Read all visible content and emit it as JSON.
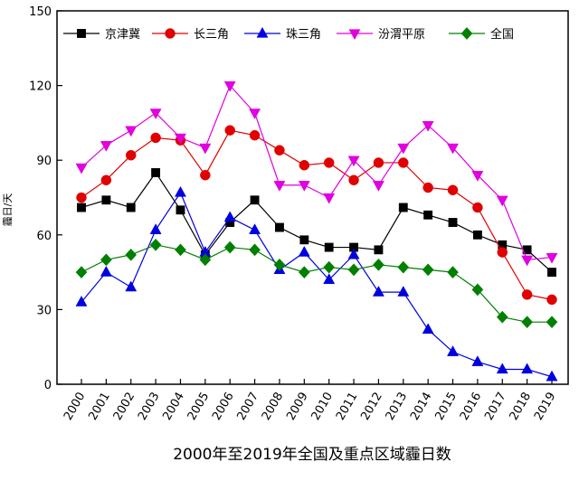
{
  "chart_data": {
    "type": "line",
    "title": "",
    "caption": "2000年至2019年全国及重点区域霾日数",
    "xlabel": "",
    "ylabel": "霾日/天",
    "ylim": [
      0,
      150
    ],
    "yticks": [
      0,
      30,
      60,
      90,
      120,
      150
    ],
    "grid": false,
    "legend": "top",
    "x": [
      "2000",
      "2001",
      "2002",
      "2003",
      "2004",
      "2005",
      "2006",
      "2007",
      "2008",
      "2009",
      "2010",
      "2011",
      "2012",
      "2013",
      "2014",
      "2015",
      "2016",
      "2017",
      "2018",
      "2019"
    ],
    "series": [
      {
        "name": "京津冀",
        "color": "#000000",
        "marker": "square",
        "values": [
          71,
          74,
          71,
          85,
          70,
          52,
          65,
          74,
          63,
          58,
          55,
          55,
          54,
          71,
          68,
          65,
          60,
          56,
          54,
          45
        ]
      },
      {
        "name": "长三角",
        "color": "#e00000",
        "marker": "circle",
        "values": [
          75,
          82,
          92,
          99,
          98,
          84,
          102,
          100,
          94,
          88,
          89,
          82,
          89,
          89,
          79,
          78,
          71,
          53,
          36,
          34
        ]
      },
      {
        "name": "珠三角",
        "color": "#0000e0",
        "marker": "triangle-up",
        "values": [
          33,
          45,
          39,
          62,
          77,
          53,
          67,
          62,
          46,
          53,
          42,
          52,
          37,
          37,
          22,
          13,
          9,
          6,
          6,
          3
        ]
      },
      {
        "name": "汾渭平原",
        "color": "#e000e0",
        "marker": "triangle-down",
        "values": [
          87,
          96,
          102,
          109,
          99,
          95,
          120,
          109,
          80,
          80,
          75,
          90,
          80,
          95,
          104,
          95,
          84,
          74,
          50,
          51
        ]
      },
      {
        "name": "全国",
        "color": "#008000",
        "marker": "diamond",
        "values": [
          45,
          50,
          52,
          56,
          54,
          50,
          55,
          54,
          48,
          45,
          47,
          46,
          48,
          47,
          46,
          45,
          38,
          27,
          25,
          25
        ]
      }
    ]
  }
}
